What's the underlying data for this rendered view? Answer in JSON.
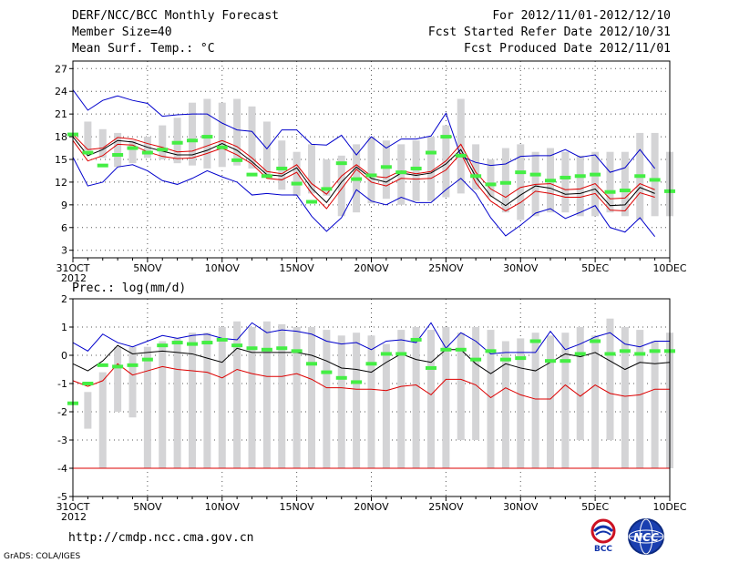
{
  "header": {
    "title": "DERF/NCC/BCC Monthly Forecast",
    "member_size": "Member Size=40",
    "variable": "Mean Surf. Temp.: °C",
    "period": "For 2012/11/01-2012/12/10",
    "fcst_started": "Fcst Started Refer Date 2012/10/31",
    "fcst_produced": "Fcst Produced Date 2012/11/01"
  },
  "footer": {
    "url": "http://cmdp.ncc.cma.gov.cn",
    "credit": "GrADS: COLA/IGES",
    "logo_bcc": "BCC",
    "logo_ncc": "NCC"
  },
  "chart_data": [
    {
      "type": "line",
      "title": "Mean Surf. Temp.: °C",
      "x_start": 0,
      "x_end": 40,
      "x_tick_labels": [
        {
          "x": 0,
          "label": "31OCT",
          "sub": "2012"
        },
        {
          "x": 5,
          "label": "5NOV"
        },
        {
          "x": 10,
          "label": "10NOV"
        },
        {
          "x": 15,
          "label": "15NOV"
        },
        {
          "x": 20,
          "label": "20NOV"
        },
        {
          "x": 25,
          "label": "25NOV"
        },
        {
          "x": 30,
          "label": "30NOV"
        },
        {
          "x": 35,
          "label": "5DEC"
        },
        {
          "x": 40,
          "label": "10DEC"
        }
      ],
      "ylim": [
        2,
        28
      ],
      "y_ticks": [
        3,
        6,
        9,
        12,
        15,
        18,
        21,
        24,
        27
      ],
      "grid": true,
      "colors": {
        "max": "#0000cc",
        "mean": "#000000",
        "band": "#dd0000",
        "bar": "#d4d4d6",
        "obs": "#44ee44"
      },
      "bars": {
        "low": [
          16.2,
          15.2,
          14.0,
          14.5,
          15.2,
          15.0,
          14.5,
          14.2,
          13.8,
          14.0,
          14.2,
          13.8,
          13.0,
          11.0,
          10.2,
          10.5,
          10.2,
          7.5,
          8.0,
          9.2,
          9.8,
          9.0,
          9.5,
          9.5,
          10.0,
          10.5,
          11.0,
          10.0,
          8.0,
          7.0,
          7.5,
          8.0,
          8.0,
          7.5,
          7.5,
          8.0,
          7.5,
          7.0,
          7.5,
          7.5
        ],
        "high": [
          20.0,
          19.0,
          18.5,
          17.5,
          18.0,
          19.5,
          20.5,
          22.5,
          23.0,
          22.5,
          23.0,
          22.0,
          20.0,
          17.5,
          16.0,
          17.0,
          15.0,
          15.5,
          17.0,
          18.0,
          17.5,
          17.0,
          17.5,
          18.0,
          19.5,
          23.0,
          17.0,
          15.0,
          16.5,
          17.0,
          16.0,
          16.5,
          16.0,
          15.5,
          16.0,
          16.0,
          16.0,
          18.5,
          18.5,
          16.0
        ]
      },
      "series": [
        {
          "name": "max",
          "values": [
            24.2,
            21.5,
            22.8,
            23.4,
            22.8,
            22.4,
            20.7,
            20.9,
            21.0,
            21.0,
            19.8,
            18.9,
            18.7,
            16.4,
            18.9,
            18.9,
            17.0,
            16.9,
            18.2,
            15.6,
            18.0,
            16.5,
            17.7,
            17.7,
            18.1,
            21.1,
            15.4,
            14.6,
            14.2,
            14.4,
            15.4,
            15.5,
            15.5,
            16.3,
            15.3,
            15.6,
            13.3,
            13.9,
            16.3,
            13.8
          ]
        },
        {
          "name": "mean_upper",
          "values": [
            18.3,
            16.3,
            16.5,
            17.9,
            17.7,
            17.1,
            16.6,
            16.0,
            16.1,
            16.8,
            17.5,
            16.7,
            15.2,
            13.4,
            13.1,
            14.3,
            11.8,
            10.4,
            12.8,
            14.3,
            12.8,
            12.6,
            13.5,
            13.1,
            13.4,
            14.8,
            17.0,
            13.3,
            11.1,
            10.0,
            11.3,
            11.7,
            11.8,
            11.0,
            11.1,
            11.8,
            9.8,
            9.9,
            11.8,
            11.0
          ]
        },
        {
          "name": "mean",
          "values": [
            18.0,
            15.5,
            16.3,
            17.5,
            17.3,
            16.6,
            16.1,
            15.6,
            15.6,
            16.2,
            17.1,
            16.2,
            14.7,
            13.0,
            12.8,
            13.9,
            11.2,
            9.3,
            12.0,
            14.0,
            12.5,
            12.0,
            13.2,
            12.9,
            13.2,
            14.4,
            16.3,
            12.7,
            10.2,
            8.9,
            10.3,
            11.5,
            11.2,
            10.4,
            10.5,
            11.1,
            8.9,
            9.0,
            11.3,
            10.5
          ]
        },
        {
          "name": "mean_lower",
          "values": [
            17.5,
            14.8,
            15.5,
            17.0,
            16.9,
            16.0,
            15.4,
            15.1,
            15.2,
            15.8,
            16.5,
            15.6,
            14.4,
            12.5,
            12.3,
            13.3,
            10.5,
            8.5,
            11.1,
            13.7,
            12.0,
            11.5,
            12.5,
            12.4,
            12.5,
            13.6,
            15.8,
            11.9,
            9.5,
            8.2,
            9.3,
            10.8,
            10.5,
            10.0,
            10.0,
            10.5,
            8.3,
            8.2,
            10.6,
            10.0
          ]
        },
        {
          "name": "min",
          "values": [
            15.3,
            11.5,
            12.0,
            14.0,
            14.3,
            13.5,
            12.2,
            11.7,
            12.5,
            13.5,
            12.7,
            12.0,
            10.3,
            10.5,
            10.3,
            10.3,
            7.5,
            5.5,
            7.3,
            11.0,
            9.5,
            9.0,
            10.0,
            9.3,
            9.3,
            11.0,
            12.5,
            10.5,
            7.3,
            4.9,
            6.3,
            7.9,
            8.5,
            7.2,
            8.0,
            8.9,
            6.0,
            5.4,
            7.3,
            4.8
          ]
        },
        {
          "name": "obs",
          "values": [
            18.3,
            15.9,
            14.2,
            15.6,
            16.5,
            15.9,
            16.3,
            17.2,
            17.5,
            18.0,
            16.6,
            14.9,
            13.0,
            12.8,
            13.8,
            11.8,
            9.4,
            11.1,
            14.5,
            12.4,
            12.9,
            14.0,
            13.3,
            13.8,
            15.9,
            18.0,
            15.5,
            12.8,
            11.7,
            11.9,
            13.3,
            13.0,
            12.2,
            12.6,
            12.8,
            13.0,
            10.7,
            10.9,
            12.8,
            12.3,
            10.8
          ]
        }
      ]
    },
    {
      "type": "line",
      "title": "Prec.: log(mm/d)",
      "x_start": 0,
      "x_end": 40,
      "x_tick_labels": [
        {
          "x": 0,
          "label": "31OCT",
          "sub": "2012"
        },
        {
          "x": 5,
          "label": "5NOV"
        },
        {
          "x": 10,
          "label": "10NOV"
        },
        {
          "x": 15,
          "label": "15NOV"
        },
        {
          "x": 20,
          "label": "20NOV"
        },
        {
          "x": 25,
          "label": "25NOV"
        },
        {
          "x": 30,
          "label": "30NOV"
        },
        {
          "x": 35,
          "label": "5DEC"
        },
        {
          "x": 40,
          "label": "10DEC"
        }
      ],
      "ylim": [
        -5,
        2
      ],
      "y_ticks": [
        -5,
        -4,
        -3,
        -2,
        -1,
        0,
        1,
        2
      ],
      "grid": true,
      "colors": {
        "max": "#0000cc",
        "mean": "#000000",
        "band": "#dd0000",
        "bar": "#d4d4d6",
        "obs": "#44ee44"
      },
      "bars": {
        "low": [
          -2.6,
          -4.0,
          -2.0,
          -2.2,
          -4.0,
          -4.0,
          -4.0,
          -4.0,
          -4.0,
          -4.0,
          -4.0,
          -4.0,
          -4.0,
          -4.0,
          -4.0,
          -4.0,
          -4.0,
          -4.0,
          -4.0,
          -4.0,
          -4.0,
          -4.0,
          -4.0,
          -4.0,
          -4.0,
          -3.0,
          -3.0,
          -4.0,
          -4.0,
          -4.0,
          -4.0,
          -4.0,
          -4.0,
          -3.0,
          -4.0,
          -3.0,
          -4.0,
          -4.0,
          -4.0,
          -4.0
        ],
        "high": [
          -1.3,
          -0.6,
          0.3,
          0.3,
          0.3,
          0.5,
          0.6,
          0.8,
          0.8,
          1.0,
          1.2,
          1.0,
          1.2,
          1.1,
          1.0,
          1.0,
          0.9,
          0.7,
          0.8,
          0.7,
          0.4,
          0.9,
          1.0,
          0.9,
          1.0,
          0.8,
          1.0,
          0.9,
          0.5,
          0.6,
          0.8,
          0.7,
          0.8,
          1.0,
          0.7,
          1.3,
          1.0,
          0.9,
          0.5,
          0.8
        ]
      },
      "series": [
        {
          "name": "max",
          "values": [
            0.45,
            0.15,
            0.75,
            0.45,
            0.3,
            0.5,
            0.7,
            0.6,
            0.7,
            0.75,
            0.6,
            0.55,
            1.15,
            0.8,
            0.9,
            0.85,
            0.75,
            0.5,
            0.4,
            0.45,
            0.2,
            0.5,
            0.55,
            0.45,
            1.15,
            0.25,
            0.8,
            0.5,
            0.05,
            0.1,
            0.1,
            0.1,
            0.85,
            0.2,
            0.4,
            0.65,
            0.8,
            0.4,
            0.3,
            0.5,
            0.5
          ]
        },
        {
          "name": "mean",
          "values": [
            -0.3,
            -0.55,
            -0.2,
            0.35,
            0.05,
            0.1,
            0.15,
            0.1,
            0.05,
            -0.1,
            -0.25,
            0.25,
            0.1,
            0.1,
            0.1,
            0.1,
            0.0,
            -0.2,
            -0.45,
            -0.5,
            -0.6,
            -0.25,
            0.05,
            -0.15,
            -0.25,
            0.2,
            0.2,
            -0.3,
            -0.65,
            -0.3,
            -0.45,
            -0.55,
            -0.25,
            0.05,
            -0.05,
            0.1,
            -0.2,
            -0.5,
            -0.25,
            -0.3,
            -0.25
          ]
        },
        {
          "name": "low_band",
          "values": [
            -0.9,
            -1.1,
            -0.9,
            -0.3,
            -0.7,
            -0.55,
            -0.4,
            -0.5,
            -0.55,
            -0.6,
            -0.8,
            -0.5,
            -0.65,
            -0.75,
            -0.75,
            -0.65,
            -0.85,
            -1.15,
            -1.15,
            -1.2,
            -1.2,
            -1.25,
            -1.1,
            -1.05,
            -1.4,
            -0.85,
            -0.85,
            -1.05,
            -1.5,
            -1.15,
            -1.4,
            -1.55,
            -1.55,
            -1.05,
            -1.45,
            -1.05,
            -1.35,
            -1.45,
            -1.4,
            -1.2,
            -1.2
          ]
        },
        {
          "name": "floor",
          "values": [
            -4,
            -4,
            -4,
            -4,
            -4,
            -4,
            -4,
            -4,
            -4,
            -4,
            -4,
            -4,
            -4,
            -4,
            -4,
            -4,
            -4,
            -4,
            -4,
            -4,
            -4,
            -4,
            -4,
            -4,
            -4,
            -4,
            -4,
            -4,
            -4,
            -4,
            -4,
            -4,
            -4,
            -4,
            -4,
            -4,
            -4,
            -4,
            -4,
            -4,
            -4
          ]
        },
        {
          "name": "obs",
          "values": [
            -1.7,
            -1.0,
            -0.35,
            -0.4,
            -0.35,
            -0.15,
            0.35,
            0.45,
            0.4,
            0.45,
            0.55,
            0.35,
            0.25,
            0.2,
            0.25,
            0.15,
            -0.3,
            -0.6,
            -0.8,
            -0.95,
            -0.3,
            0.05,
            0.05,
            0.55,
            -0.45,
            0.2,
            0.2,
            -0.15,
            0.15,
            -0.15,
            -0.1,
            0.5,
            -0.2,
            -0.2,
            0.05,
            0.5,
            0.05,
            0.15,
            0.05,
            0.15,
            0.15
          ]
        }
      ]
    }
  ]
}
